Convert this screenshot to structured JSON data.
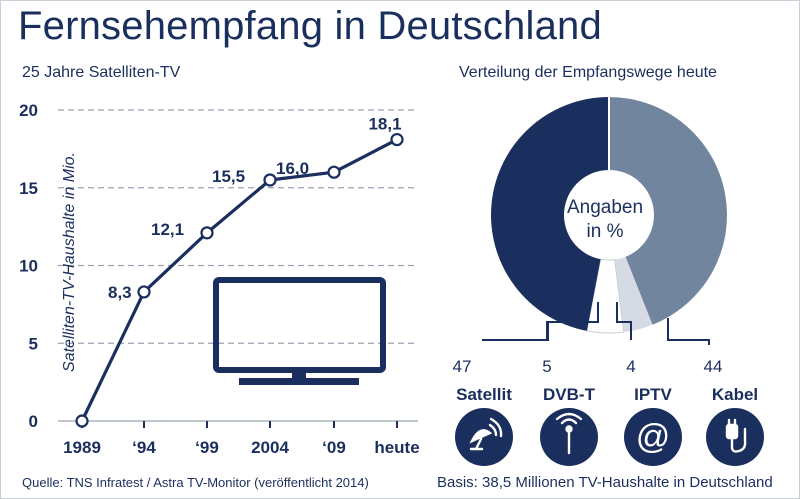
{
  "title": "Fernsehempfang in Deutschland",
  "source": "Quelle: TNS Infratest / Astra TV-Monitor (veröffentlicht 2014)",
  "basis": "Basis: 38,5 Millionen TV-Haushalte in Deutschland",
  "colors": {
    "navy": "#1b2f5e",
    "slate": "#72859f",
    "light": "#d5dae3",
    "white": "#ffffff"
  },
  "chart_data": [
    {
      "type": "line",
      "title": "25 Jahre Satelliten-TV",
      "ylabel": "Satelliten-TV-Haushalte in Mio.",
      "xlabel": "",
      "categories": [
        "1989",
        "‘94",
        "‘99",
        "2004",
        "‘09",
        "heute"
      ],
      "values": [
        0,
        8.3,
        12.1,
        15.5,
        16.0,
        18.1
      ],
      "data_labels": [
        "",
        "8,3",
        "12,1",
        "15,5",
        "16,0",
        "18,1"
      ],
      "yticks": [
        "0",
        "5",
        "10",
        "15",
        "20"
      ],
      "ylim": [
        0,
        20
      ],
      "grid": "horizontal dashed"
    },
    {
      "type": "pie",
      "title": "Verteilung der Empfangswege heute",
      "center_label": [
        "Angaben",
        "in %"
      ],
      "slices": [
        {
          "name": "Satellit",
          "value": 47,
          "value_label": "47",
          "color": "#1b2f5e",
          "icon": "satellite-dish-icon"
        },
        {
          "name": "DVB-T",
          "value": 5,
          "value_label": "5",
          "color": "#ffffff",
          "icon": "antenna-icon"
        },
        {
          "name": "IPTV",
          "value": 4,
          "value_label": "4",
          "color": "#d5dae3",
          "icon": "at-sign-icon"
        },
        {
          "name": "Kabel",
          "value": 44,
          "value_label": "44",
          "color": "#72859f",
          "icon": "cable-plug-icon"
        }
      ]
    }
  ]
}
